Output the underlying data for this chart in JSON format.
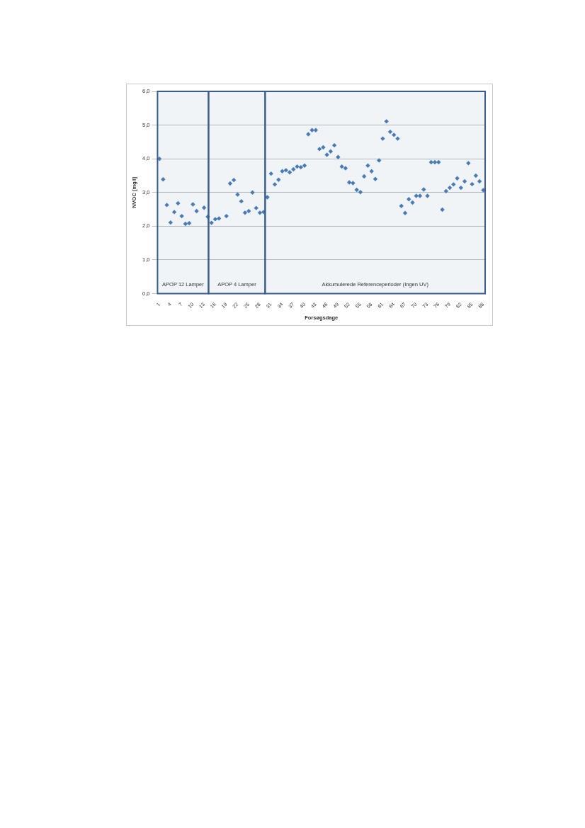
{
  "chart_data": {
    "type": "scatter",
    "xlabel": "Forsøgsdage",
    "ylabel": "NVOC [mg/l]",
    "x": [
      1,
      2,
      3,
      4,
      5,
      6,
      7,
      8,
      9,
      10,
      11,
      12,
      13,
      14,
      15,
      16,
      17,
      18,
      19,
      20,
      21,
      22,
      23,
      24,
      25,
      26,
      27,
      28,
      29,
      30,
      31,
      32,
      33,
      34,
      35,
      36,
      37,
      38,
      39,
      40,
      41,
      42,
      43,
      44,
      45,
      46,
      47,
      48,
      49,
      50,
      51,
      52,
      53,
      54,
      55,
      56,
      57,
      58,
      59,
      60,
      61,
      62,
      63,
      64,
      65,
      66,
      67,
      68,
      69,
      70,
      71,
      72,
      73,
      74,
      75,
      76,
      77,
      78,
      79,
      80,
      81,
      82,
      83,
      84,
      85,
      86,
      87,
      88
    ],
    "series": [
      {
        "color": "#4a7ebb",
        "values": [
          4.0,
          3.39,
          2.63,
          2.11,
          2.42,
          2.68,
          2.3,
          2.07,
          2.09,
          2.65,
          2.45,
          null,
          2.55,
          2.28,
          2.1,
          2.21,
          2.23,
          null,
          2.3,
          3.27,
          3.37,
          2.94,
          2.74,
          2.4,
          2.45,
          3.0,
          2.54,
          2.4,
          2.42,
          2.86,
          3.56,
          3.24,
          3.38,
          3.63,
          3.66,
          3.6,
          3.69,
          3.77,
          3.75,
          3.8,
          4.73,
          4.85,
          4.85,
          4.29,
          4.34,
          4.12,
          4.22,
          4.4,
          4.05,
          3.77,
          3.72,
          3.3,
          3.28,
          3.08,
          3.01,
          3.48,
          3.8,
          3.63,
          3.4,
          3.95,
          4.6,
          5.11,
          4.8,
          4.71,
          4.6,
          2.6,
          2.39,
          2.8,
          2.7,
          2.9,
          2.9,
          3.09,
          2.9,
          3.9,
          3.9,
          3.9,
          2.49,
          3.04,
          3.14,
          3.24,
          3.42,
          3.14,
          3.33,
          3.87,
          3.25,
          3.5,
          3.33,
          3.07
        ]
      }
    ],
    "xlim": [
      0.5,
      88.5
    ],
    "xticks": [
      1,
      4,
      7,
      10,
      13,
      16,
      19,
      22,
      25,
      28,
      31,
      34,
      37,
      40,
      43,
      46,
      49,
      52,
      55,
      58,
      61,
      64,
      67,
      70,
      73,
      76,
      79,
      82,
      85,
      88
    ],
    "ylim": [
      0,
      6
    ],
    "yticks": [
      {
        "value": 0,
        "label": "0,0"
      },
      {
        "value": 1,
        "label": "1,0"
      },
      {
        "value": 2,
        "label": "2,0"
      },
      {
        "value": 3,
        "label": "3,0"
      },
      {
        "value": 4,
        "label": "4,0"
      },
      {
        "value": 5,
        "label": "5,0"
      },
      {
        "value": 6,
        "label": "6,0"
      }
    ],
    "bands": [
      {
        "axis": "x",
        "from": 0.5,
        "to": 14.2,
        "label": "APOP 12 Lamper",
        "color": "#385d8a"
      },
      {
        "axis": "x",
        "from": 14.2,
        "to": 29.4,
        "label": "APOP 4 Lamper",
        "color": "#385d8a"
      },
      {
        "axis": "x",
        "from": 29.4,
        "to": 88.5,
        "label": "Akkumulerede Referenceperioder (Ingen UV)",
        "color": "#385d8a"
      }
    ],
    "grid": "y",
    "legend": false,
    "marker": "diamond"
  }
}
